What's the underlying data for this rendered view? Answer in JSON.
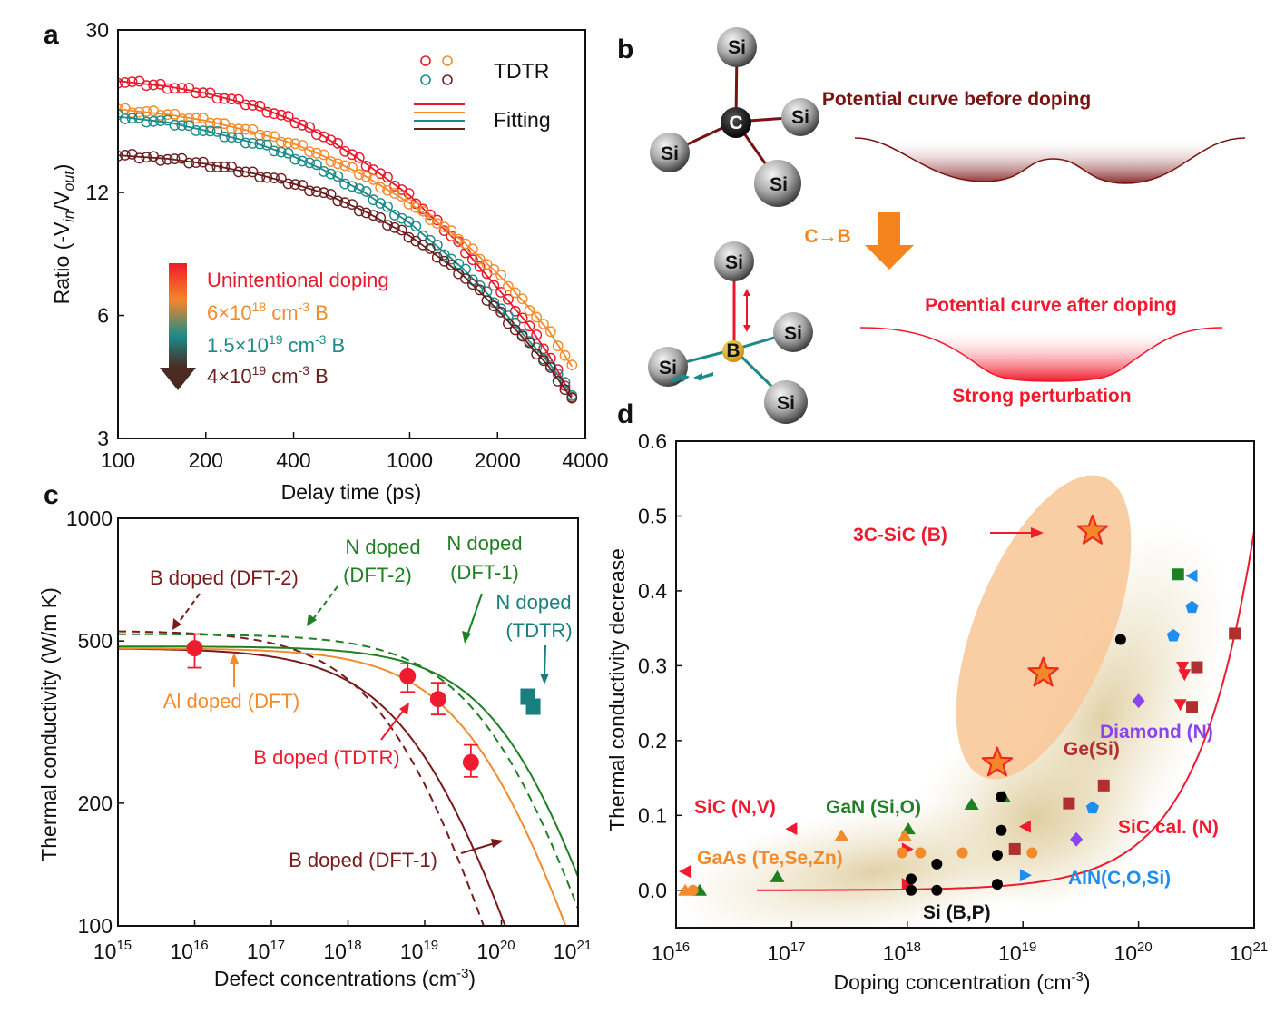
{
  "panels": {
    "a": "a",
    "b": "b",
    "c": "c",
    "d": "d"
  },
  "chart_data": [
    {
      "id": "a",
      "type": "scatter",
      "xscale": "log",
      "yscale": "log",
      "xlabel": "Delay time (ps)",
      "ylabel": "Ratio (-Vin/Vout)",
      "ylabel_parts": {
        "pre": "Ratio (-V",
        "sub1": "in",
        "mid": "/V",
        "sub2": "out",
        "post": ")"
      },
      "xlim": [
        100,
        4000
      ],
      "ylim": [
        3,
        30
      ],
      "xticks": [
        100,
        200,
        400,
        1000,
        2000,
        4000
      ],
      "xtick_labels": [
        "100",
        "200",
        "400",
        "1000",
        "2000",
        "4000"
      ],
      "yticks": [
        3,
        6,
        12,
        30
      ],
      "ytick_labels": [
        "3",
        "6",
        "12",
        "30"
      ],
      "legend": {
        "markers_label": "TDTR",
        "lines_label": "Fitting",
        "placement": "top-right"
      },
      "doping_legend": {
        "placement": "center-left",
        "entries": [
          {
            "text": "Unintentional doping",
            "color": "#e8182c"
          },
          {
            "base": "6×10",
            "exp": "18",
            "unit": " cm",
            "uexp": "-3",
            "suffix": " B",
            "color": "#f38b2d"
          },
          {
            "base": "1.5×10",
            "exp": "19",
            "unit": " cm",
            "uexp": "-3",
            "suffix": " B",
            "color": "#1c8a88"
          },
          {
            "base": "4×10",
            "exp": "19",
            "unit": " cm",
            "uexp": "-3",
            "suffix": " B",
            "color": "#6a1f1f"
          }
        ]
      },
      "series": [
        {
          "name": "Unintentional doping",
          "color": "#e8182c",
          "x": [
            100,
            150,
            200,
            300,
            400,
            500,
            700,
            1000,
            1500,
            2000,
            2500,
            3000,
            3600
          ],
          "y": [
            22.5,
            21.8,
            21.0,
            19.5,
            18.0,
            16.6,
            14.2,
            11.8,
            8.9,
            7.0,
            5.8,
            4.8,
            3.8
          ]
        },
        {
          "name": "6×10^18 cm^-3 B",
          "color": "#f38b2d",
          "x": [
            100,
            150,
            200,
            300,
            400,
            500,
            700,
            1000,
            1500,
            2000,
            2500,
            3000,
            3600
          ],
          "y": [
            19.2,
            18.6,
            18.0,
            16.8,
            15.8,
            14.8,
            13.2,
            11.3,
            9.2,
            7.6,
            6.4,
            5.5,
            4.5
          ]
        },
        {
          "name": "1.5×10^19 cm^-3 B",
          "color": "#1c8a88",
          "x": [
            100,
            150,
            200,
            300,
            400,
            500,
            700,
            1000,
            1500,
            2000,
            2500,
            3000,
            3600
          ],
          "y": [
            18.4,
            17.8,
            17.0,
            15.8,
            14.7,
            13.7,
            12.0,
            10.1,
            7.9,
            6.4,
            5.3,
            4.6,
            3.85
          ]
        },
        {
          "name": "4×10^19 cm^-3 B",
          "color": "#6a1f1f",
          "x": [
            100,
            150,
            200,
            300,
            400,
            500,
            700,
            1000,
            1500,
            2000,
            2500,
            3000,
            3600
          ],
          "y": [
            14.8,
            14.5,
            14.1,
            13.3,
            12.6,
            12.0,
            10.8,
            9.4,
            7.6,
            6.2,
            5.2,
            4.5,
            3.75
          ]
        }
      ]
    },
    {
      "id": "b",
      "type": "diagram",
      "atoms_top": {
        "center": "C",
        "neighbors": [
          "Si",
          "Si",
          "Si",
          "Si"
        ]
      },
      "atoms_bottom": {
        "center": "B",
        "neighbors": [
          "Si",
          "Si",
          "Si",
          "Si"
        ]
      },
      "transition_label": "C→B",
      "curve_before_label": "Potential curve before doping",
      "curve_after_label": "Potential curve after doping",
      "perturbation_label": "Strong perturbation",
      "colors": {
        "before": "#7b1212",
        "after": "#f0182a",
        "arrow": "#f5841f",
        "bond_after": "#1d8a87"
      }
    },
    {
      "id": "c",
      "type": "line",
      "xscale": "log",
      "yscale": "log",
      "xlabel": "Defect concentrations (cm-3)",
      "xlabel_parts": {
        "pre": "Defect concentrations (cm",
        "sup": "-3",
        "post": ")"
      },
      "ylabel": "Thermal conductivity (W/m K)",
      "xlim": [
        1000000000000000.0,
        1e+21
      ],
      "ylim": [
        100,
        1000
      ],
      "xtick_exps": [
        "15",
        "16",
        "17",
        "18",
        "19",
        "20",
        "21"
      ],
      "xtick_base": "10",
      "yticks": [
        100,
        200,
        500,
        1000
      ],
      "ytick_labels": [
        "100",
        "200",
        "500",
        "1000"
      ],
      "curves": [
        {
          "name": "B doped (DFT-1)",
          "color": "#7a1a1a",
          "dash": false,
          "k0": 480,
          "nc": 1.3e+19,
          "p": 0.62
        },
        {
          "name": "B doped (DFT-2)",
          "color": "#7a1a1a",
          "dash": true,
          "k0": 530,
          "nc": 6e+18,
          "p": 0.64
        },
        {
          "name": "Al doped (DFT)",
          "color": "#f38b2d",
          "dash": false,
          "k0": 480,
          "nc": 8e+19,
          "p": 0.62
        },
        {
          "name": "N doped (DFT-1)",
          "color": "#1e7f23",
          "dash": false,
          "k0": 485,
          "nc": 2.2e+20,
          "p": 0.65
        },
        {
          "name": "N doped (DFT-2)",
          "color": "#1e7f23",
          "dash": true,
          "k0": 520,
          "nc": 1.2e+20,
          "p": 0.62
        }
      ],
      "points": [
        {
          "series": "B doped (TDTR)",
          "color": "#ee1c2e",
          "x": 1e+16,
          "y": 480,
          "err": [
            430,
            520
          ]
        },
        {
          "series": "B doped (TDTR)",
          "color": "#ee1c2e",
          "x": 6e+18,
          "y": 410,
          "err": [
            375,
            440
          ]
        },
        {
          "series": "B doped (TDTR)",
          "color": "#ee1c2e",
          "x": 1.5e+19,
          "y": 360,
          "err": [
            330,
            395
          ]
        },
        {
          "series": "B doped (TDTR)",
          "color": "#ee1c2e",
          "x": 4e+19,
          "y": 252,
          "err": [
            232,
            278
          ]
        },
        {
          "series": "N doped (TDTR)",
          "color": "#17807e",
          "x": 2.2e+20,
          "y": 365,
          "err": null
        },
        {
          "series": "N doped (TDTR)",
          "color": "#17807e",
          "x": 2.6e+20,
          "y": 345,
          "err": null
        }
      ],
      "annotations": [
        {
          "text": "B doped (DFT-2)",
          "color": "#7a1a1a"
        },
        {
          "text1": "N doped",
          "text2": "(DFT-2)",
          "color": "#1e7f23"
        },
        {
          "text1": "N doped",
          "text2": "(DFT-1)",
          "color": "#1e7f23"
        },
        {
          "text1": "N doped",
          "text2": "(TDTR)",
          "color": "#17807e"
        },
        {
          "text": "Al doped (DFT)",
          "color": "#f38b2d"
        },
        {
          "text": "B doped (TDTR)",
          "color": "#ee1c2e"
        },
        {
          "text": "B doped (DFT-1)",
          "color": "#7a1a1a"
        }
      ]
    },
    {
      "id": "d",
      "type": "scatter",
      "xscale": "log",
      "yscale": "linear",
      "xlabel": "Doping concentration (cm-3)",
      "xlabel_parts": {
        "pre": "Doping concentration (cm",
        "sup": "-3",
        "post": ")"
      },
      "ylabel": "Thermal conductivity decrease",
      "xlim": [
        1e+16,
        1e+21
      ],
      "ylim": [
        -0.05,
        0.6
      ],
      "xtick_exps": [
        "16",
        "17",
        "18",
        "19",
        "20",
        "21"
      ],
      "xtick_base": "10",
      "yticks": [
        0.0,
        0.1,
        0.2,
        0.3,
        0.4,
        0.5,
        0.6
      ],
      "ytick_labels": [
        "0.0",
        "0.1",
        "0.2",
        "0.3",
        "0.4",
        "0.5",
        "0.6"
      ],
      "highlight": {
        "label": "3C-SiC (B)",
        "color": "#ee1c2e"
      },
      "stars": [
        {
          "x": 6e+18,
          "y": 0.17
        },
        {
          "x": 1.5e+19,
          "y": 0.29
        },
        {
          "x": 4e+19,
          "y": 0.48
        }
      ],
      "fit_curve": {
        "name": "SiC cal. (N)",
        "color": "#ee1c2e",
        "x_start": 5e+16,
        "x_end": 1e+21,
        "a": 0.48,
        "x_ref": 1e+21,
        "p": 0.88
      },
      "groups": [
        {
          "label": "SiC (N,V)",
          "color": "#ee1c2e",
          "marker": "tri-left",
          "points": [
            [
              1.2e+16,
              0.025
            ],
            [
              1e+17,
              0.082
            ],
            [
              1.05e+19,
              0.085
            ]
          ]
        },
        {
          "label": "SiC (N,V) right",
          "color": "#ee1c2e",
          "marker": "tri-right",
          "points": [
            [
              1e+18,
              0.055
            ],
            [
              1e+18,
              0.008
            ]
          ]
        },
        {
          "label": "GaN (Si,O)",
          "color": "#1e7f23",
          "marker": "tri-up",
          "points": [
            [
              1.6e+16,
              0.0
            ],
            [
              7.5e+16,
              0.018
            ],
            [
              1.02e+18,
              0.082
            ],
            [
              3.6e+18,
              0.115
            ],
            [
              6.8e+18,
              0.125
            ]
          ]
        },
        {
          "label": "GaN (Si,O) square",
          "color": "#1e7f23",
          "marker": "square",
          "points": [
            [
              2.2e+20,
              0.422
            ]
          ]
        },
        {
          "label": "GaAs (Te,Se,Zn)",
          "color": "#f38b2d",
          "marker": "circle",
          "points": [
            [
              1.4e+16,
              0.0
            ],
            [
              9e+17,
              0.05
            ],
            [
              1.3e+18,
              0.05
            ],
            [
              3e+18,
              0.05
            ],
            [
              1.2e+19,
              0.05
            ]
          ]
        },
        {
          "label": "GaAs (Te,Se,Zn) triangles",
          "color": "#f38b2d",
          "marker": "tri-up",
          "points": [
            [
              1.2e+16,
              0.0
            ],
            [
              2.7e+17,
              0.073
            ],
            [
              9.5e+17,
              0.073
            ]
          ]
        },
        {
          "label": "Si (B,P)",
          "color": "#000000",
          "marker": "circle",
          "points": [
            [
              1.08e+18,
              0.015
            ],
            [
              1.08e+18,
              0.0
            ],
            [
              1.8e+18,
              0.035
            ],
            [
              1.8e+18,
              0.0
            ],
            [
              6e+18,
              0.047
            ],
            [
              6e+18,
              0.008
            ],
            [
              6.5e+18,
              0.08
            ],
            [
              6.5e+18,
              0.125
            ],
            [
              7e+19,
              0.335
            ]
          ]
        },
        {
          "label": "Ge(Si)",
          "color": "#b03030",
          "marker": "square",
          "points": [
            [
              8.5e+18,
              0.055
            ],
            [
              2.5e+19,
              0.116
            ],
            [
              5e+19,
              0.14
            ],
            [
              3.2e+20,
              0.298
            ],
            [
              2.9e+20,
              0.245
            ],
            [
              6.8e+20,
              0.343
            ]
          ]
        },
        {
          "label": "Diamond (N)",
          "color": "#8a45f0",
          "marker": "diamond",
          "points": [
            [
              2.9e+19,
              0.068
            ],
            [
              1e+20,
              0.253
            ]
          ]
        },
        {
          "label": "SiC cal. (N) markers",
          "color": "#ee1c2e",
          "marker": "tri-down",
          "points": [
            [
              2.4e+20,
              0.298
            ],
            [
              2.5e+20,
              0.288
            ],
            [
              2.3e+20,
              0.248
            ]
          ]
        },
        {
          "label": "AlN(C,O,Si)",
          "color": "#1e8ef0",
          "marker": "pentagon",
          "points": [
            [
              4e+19,
              0.11
            ],
            [
              2e+20,
              0.34
            ],
            [
              2.9e+20,
              0.378
            ]
          ]
        },
        {
          "label": "AlN(C,O,Si) triangles",
          "color": "#1e8ef0",
          "marker": "tri-right",
          "points": [
            [
              1.05e+19,
              0.02
            ]
          ]
        },
        {
          "label": "AlN(C,O,Si) left",
          "color": "#1e8ef0",
          "marker": "tri-left",
          "points": [
            [
              2.9e+20,
              0.42
            ]
          ]
        }
      ],
      "labels": [
        {
          "text": "SiC (N,V)",
          "color": "#ee1c2e"
        },
        {
          "text": "GaN (Si,O)",
          "color": "#1e7f23"
        },
        {
          "text": "GaAs (Te,Se,Zn)",
          "color": "#f38b2d"
        },
        {
          "text": "Si (B,P)",
          "color": "#111111"
        },
        {
          "text": "Ge(Si)",
          "color": "#b03030"
        },
        {
          "text": "Diamond (N)",
          "color": "#8a45f0"
        },
        {
          "text": "SiC cal. (N)",
          "color": "#ee1c2e"
        },
        {
          "text": "AlN(C,O,Si)",
          "color": "#1e8ef0"
        }
      ]
    }
  ]
}
